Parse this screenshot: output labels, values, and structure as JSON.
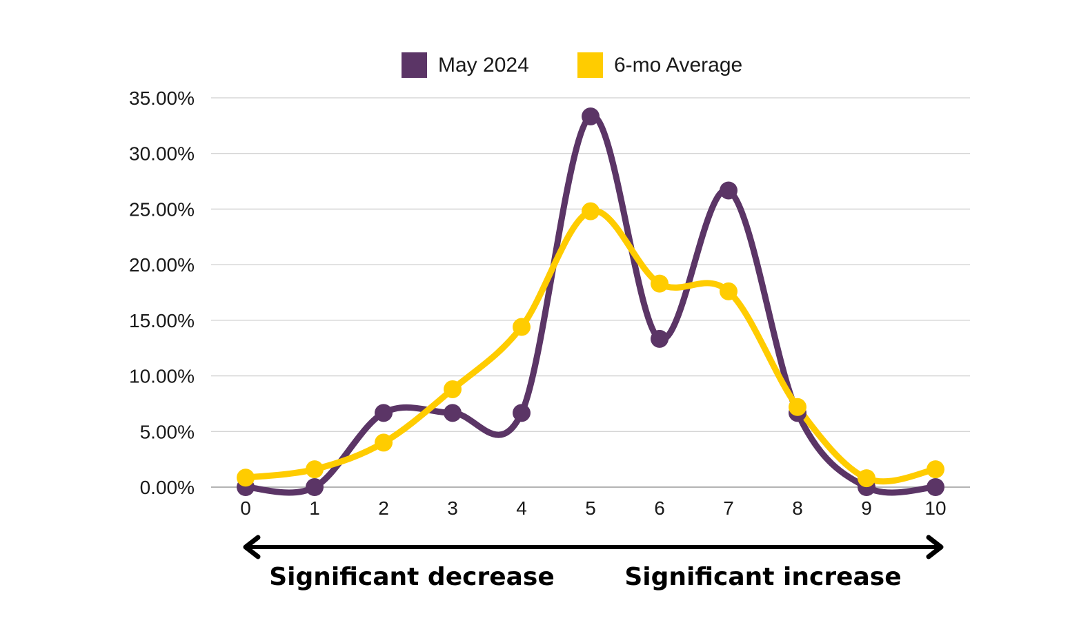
{
  "chart_data": {
    "type": "line",
    "smooth": true,
    "x": [
      0,
      1,
      2,
      3,
      4,
      5,
      6,
      7,
      8,
      9,
      10
    ],
    "series": [
      {
        "name": "May 2024",
        "color": "#5b3566",
        "values": [
          0.0,
          0.0,
          6.67,
          6.67,
          6.67,
          33.33,
          13.33,
          26.67,
          6.67,
          0.0,
          0.0
        ]
      },
      {
        "name": "6-mo Average",
        "color": "#ffcc00",
        "values": [
          0.85,
          1.6,
          4.0,
          8.8,
          14.4,
          24.8,
          18.3,
          17.6,
          7.2,
          0.8,
          1.6
        ]
      }
    ],
    "y_ticks": [
      "0.00%",
      "5.00%",
      "10.00%",
      "15.00%",
      "20.00%",
      "25.00%",
      "30.00%",
      "35.00%"
    ],
    "x_ticks": [
      "0",
      "1",
      "2",
      "3",
      "4",
      "5",
      "6",
      "7",
      "8",
      "9",
      "10"
    ],
    "ylim": [
      0,
      35
    ],
    "xlim": [
      0,
      10
    ],
    "grid": true,
    "legend_position": "top-center",
    "annotations": {
      "left": "Significant decrease",
      "right": "Significant increase"
    },
    "arrow_color": "#000000",
    "grid_color": "#cfcfcf"
  }
}
